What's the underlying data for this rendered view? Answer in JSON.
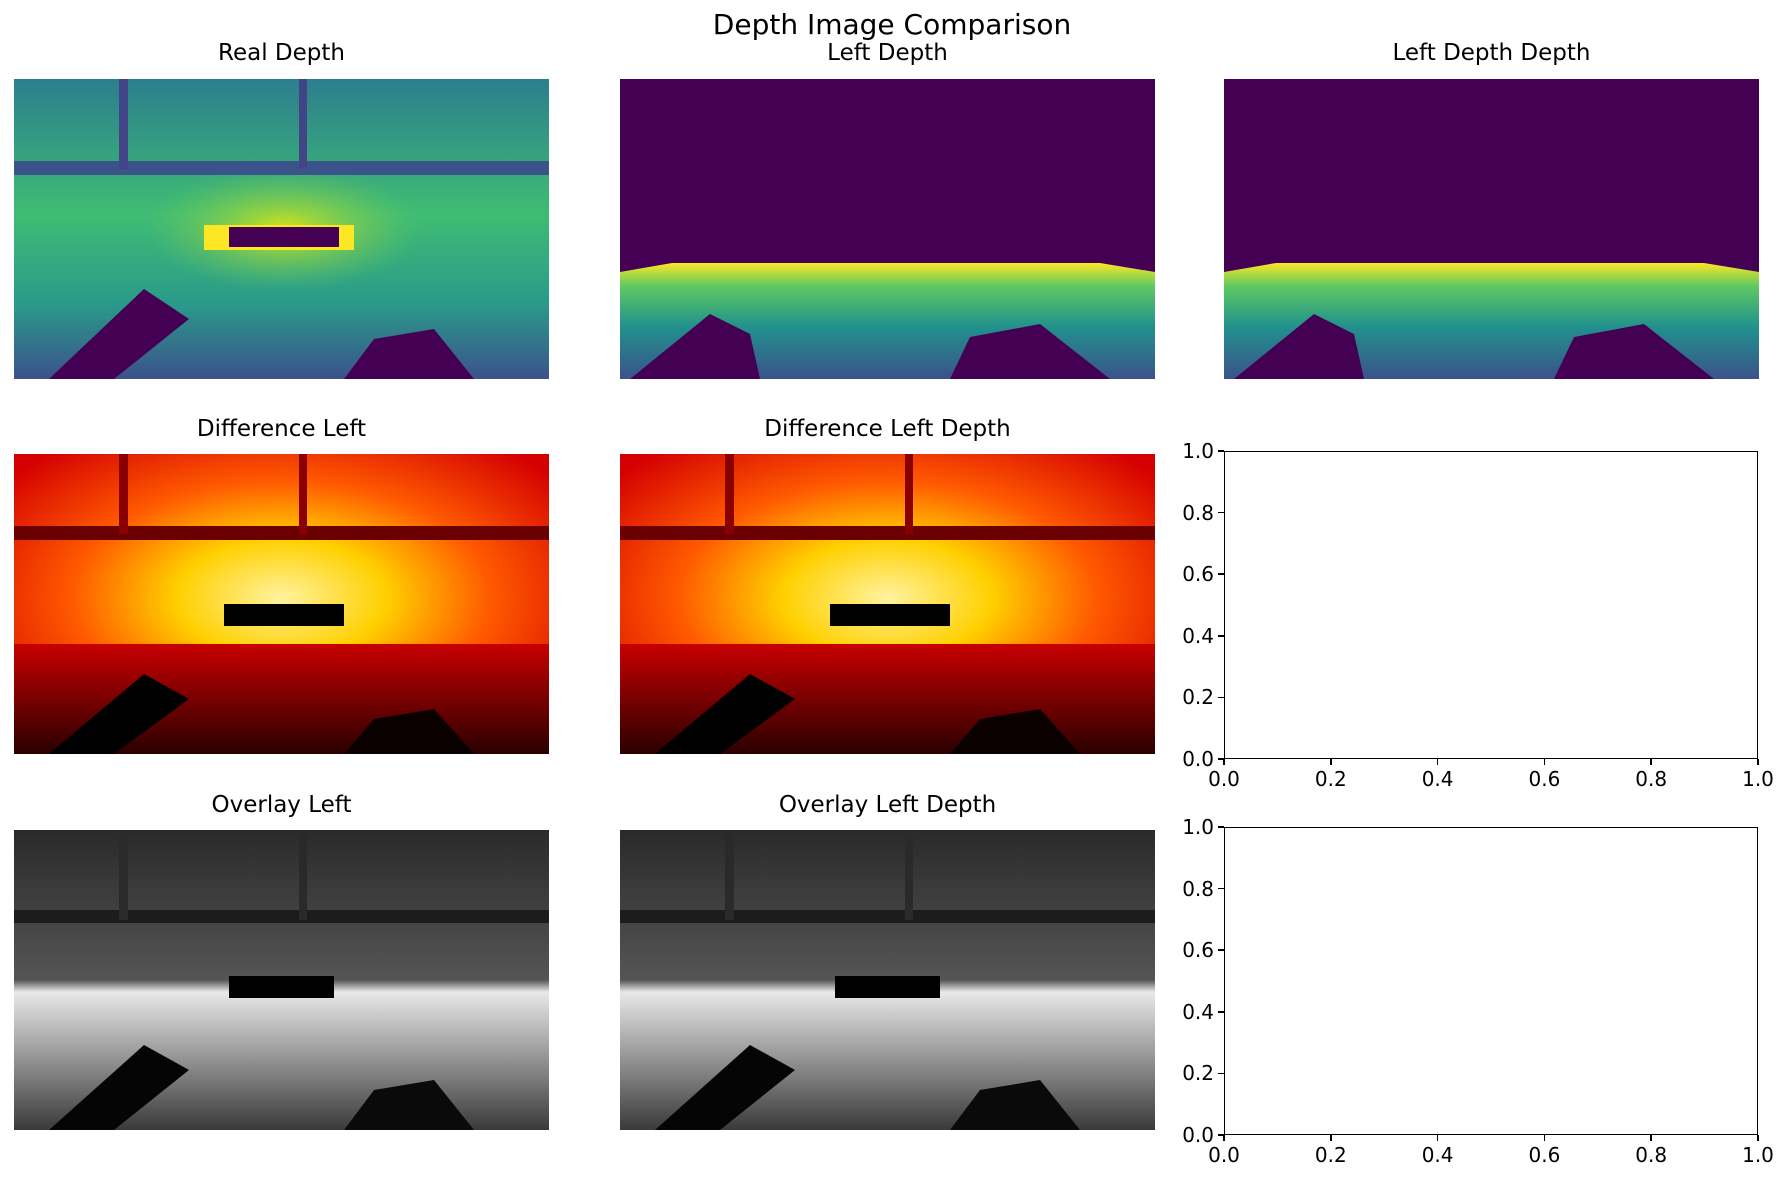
{
  "figure": {
    "title": "Depth Image Comparison"
  },
  "panels": [
    {
      "title": "Real Depth",
      "colormap": "viridis"
    },
    {
      "title": "Left Depth",
      "colormap": "viridis"
    },
    {
      "title": "Left Depth Depth",
      "colormap": "viridis"
    },
    {
      "title": "Difference Left",
      "colormap": "hot"
    },
    {
      "title": "Difference Left Depth",
      "colormap": "hot"
    },
    {
      "title": "Overlay Left",
      "colormap": "gray"
    },
    {
      "title": "Overlay Left Depth",
      "colormap": "gray"
    }
  ],
  "chart_data": [
    {
      "type": "heatmap",
      "title": "Real Depth",
      "colormap": "viridis"
    },
    {
      "type": "heatmap",
      "title": "Left Depth",
      "colormap": "viridis"
    },
    {
      "type": "heatmap",
      "title": "Left Depth Depth",
      "colormap": "viridis"
    },
    {
      "type": "heatmap",
      "title": "Difference Left",
      "colormap": "hot"
    },
    {
      "type": "heatmap",
      "title": "Difference Left Depth",
      "colormap": "hot"
    },
    {
      "type": "heatmap",
      "title": "Overlay Left",
      "colormap": "gray"
    },
    {
      "type": "heatmap",
      "title": "Overlay Left Depth",
      "colormap": "gray"
    },
    {
      "type": "scatter",
      "title": "",
      "xlim": [
        0,
        1
      ],
      "ylim": [
        0,
        1
      ],
      "xticks": [
        "0.0",
        "0.2",
        "0.4",
        "0.6",
        "0.8",
        "1.0"
      ],
      "yticks": [
        "0.0",
        "0.2",
        "0.4",
        "0.6",
        "0.8",
        "1.0"
      ],
      "series": []
    },
    {
      "type": "scatter",
      "title": "",
      "xlim": [
        0,
        1
      ],
      "ylim": [
        0,
        1
      ],
      "xticks": [
        "0.0",
        "0.2",
        "0.4",
        "0.6",
        "0.8",
        "1.0"
      ],
      "yticks": [
        "0.0",
        "0.2",
        "0.4",
        "0.6",
        "0.8",
        "1.0"
      ],
      "series": []
    }
  ]
}
